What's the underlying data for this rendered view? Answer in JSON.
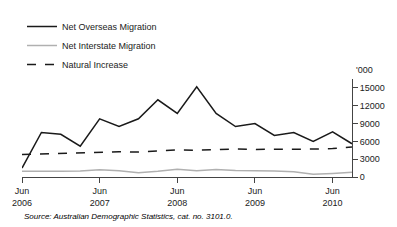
{
  "chart_data": {
    "type": "line",
    "ylabel": "'000",
    "source": "Source: Australian Demographic Statistics, cat. no. 3101.0.",
    "categories": [
      "Jun\n2006",
      null,
      null,
      null,
      "Jun\n2007",
      null,
      null,
      null,
      "Jun\n2008",
      null,
      null,
      null,
      "Jun\n2009",
      null,
      null,
      null,
      "Jun\n2010",
      null
    ],
    "series": [
      {
        "name": "Net Overseas Migration",
        "color": "#1a1a1a",
        "line_style": "solid",
        "values": [
          1500,
          7500,
          7200,
          5200,
          9800,
          8500,
          9800,
          13000,
          10700,
          15200,
          10700,
          8500,
          9000,
          7000,
          7500,
          6000,
          7600,
          5600
        ]
      },
      {
        "name": "Net Interstate Migration",
        "color": "#b0b0b0",
        "line_style": "solid",
        "values": [
          950,
          900,
          950,
          1000,
          1200,
          1050,
          700,
          950,
          1300,
          1050,
          1250,
          1100,
          1100,
          1000,
          900,
          450,
          600,
          800
        ]
      },
      {
        "name": "Natural Increase",
        "color": "#1a1a1a",
        "line_style": "dashed",
        "values": [
          3800,
          3900,
          4050,
          4100,
          4200,
          4250,
          4200,
          4350,
          4550,
          4500,
          4600,
          4700,
          4650,
          4650,
          4650,
          4700,
          4800,
          5050
        ]
      }
    ],
    "ylim": [
      0,
      16500
    ],
    "yticks": [
      0,
      3000,
      6000,
      9000,
      12000,
      15000
    ],
    "grid": false,
    "legend": "upper left"
  }
}
